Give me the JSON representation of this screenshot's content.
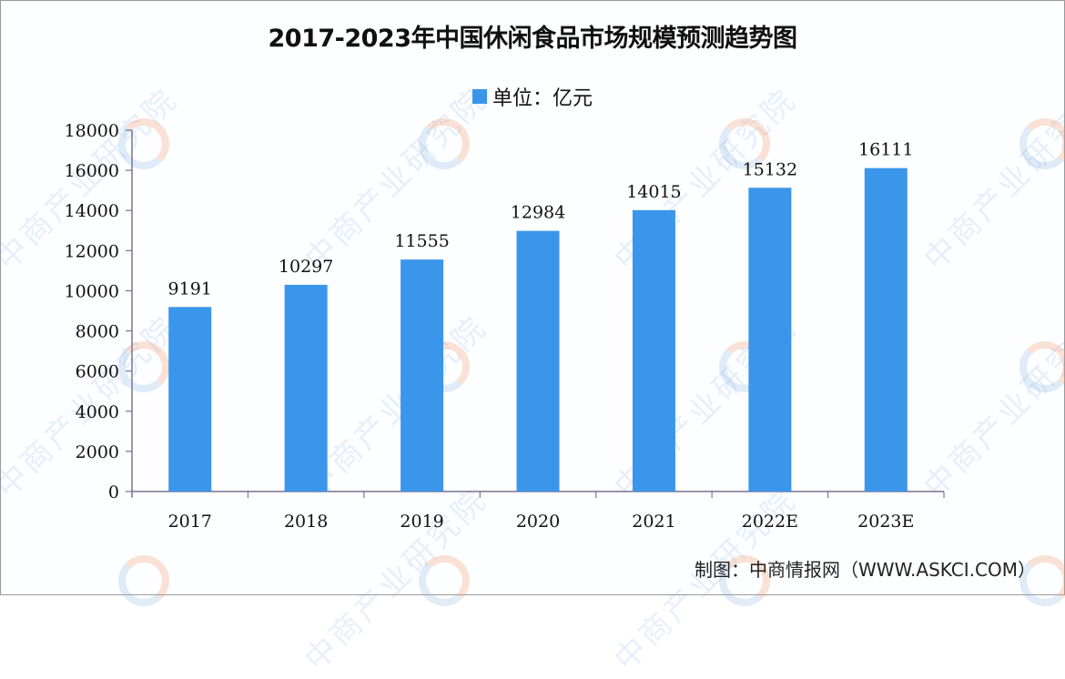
{
  "title": "2017-2023年中国休闲食品市场规模预测趋势图",
  "legend": {
    "label": "单位：亿元",
    "swatch_color": "#3a96ea"
  },
  "source": "制图：中商情报网（WWW.ASKCI.COM）",
  "watermark": {
    "text": "中商产业研究院"
  },
  "colors": {
    "bar": "#3a96ea",
    "axis": "#7a7490",
    "text": "#111111"
  },
  "chart_data": {
    "type": "bar",
    "title": "2017-2023年中国休闲食品市场规模预测趋势图",
    "categories": [
      "2017",
      "2018",
      "2019",
      "2020",
      "2021",
      "2022E",
      "2023E"
    ],
    "series": [
      {
        "name": "单位：亿元",
        "values": [
          9191,
          10297,
          11555,
          12984,
          14015,
          15132,
          16111
        ]
      }
    ],
    "value_labels": [
      "9191",
      "10297",
      "11555",
      "12984",
      "14015",
      "15132",
      "16111"
    ],
    "xlabel": "",
    "ylabel": "",
    "ylim": [
      0,
      18000
    ],
    "yticks": [
      "0",
      "2000",
      "4000",
      "6000",
      "8000",
      "10000",
      "12000",
      "14000",
      "16000",
      "18000"
    ],
    "grid": false,
    "legend_position": "top"
  }
}
